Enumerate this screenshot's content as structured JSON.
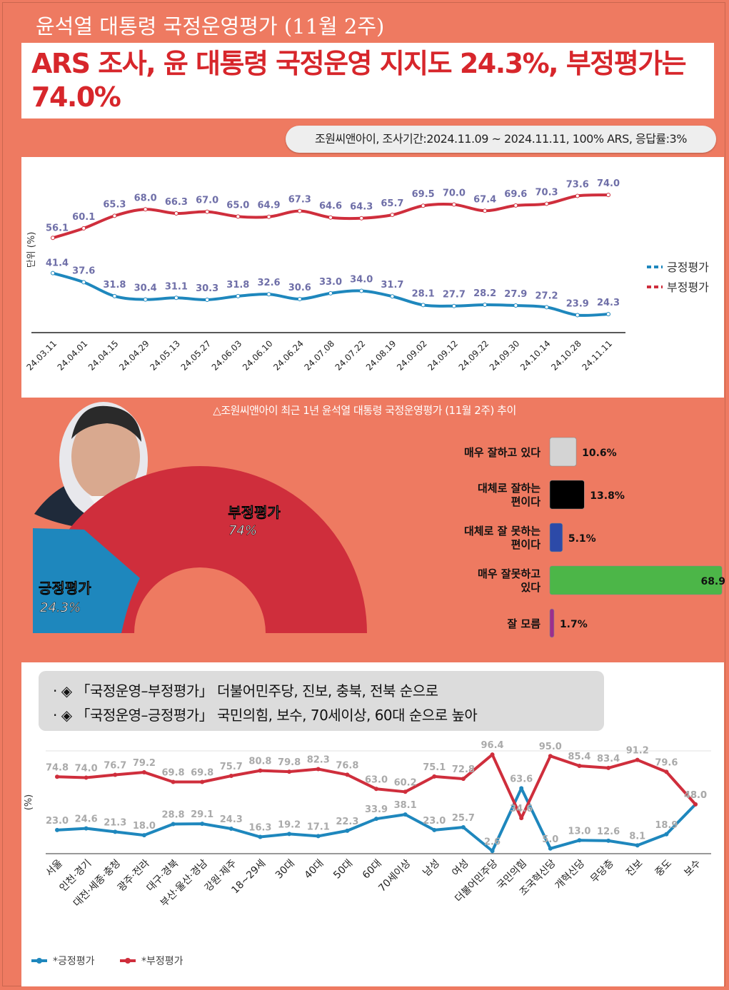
{
  "header": {
    "top_title": "윤석열 대통령 국정운영평가 (11월 2주)",
    "headline": "ARS 조사, 윤 대통령 국정운영 지지도 24.3%, 부정평가는 74.0%",
    "source": "조원씨앤아이, 조사기간:2024.11.09 ~ 2024.11.11, 100% ARS, 응답률:3%"
  },
  "trend_caption": "△조원씨앤아이 최근 1년 윤석열 대통령 국정운영평가 (11월 2주) 추이",
  "bubble": {
    "line1": "· ◈ 「국정운영–부정평가」 더불어민주당, 진보, 충북, 전북 순으로",
    "line2": "· ◈ 「국정운영–긍정평가」 국민의힘, 보수, 70세이상, 60대 순으로 높아"
  },
  "colors": {
    "positive": "#1e87bd",
    "negative": "#cf2e3c",
    "background": "#ee7a61"
  },
  "chart_data": [
    {
      "type": "line",
      "ylabel": "단위 (%)",
      "categories": [
        "24.03.11",
        "24.04.01",
        "24.04.15",
        "24.04.29",
        "24.05.13",
        "24.05.27",
        "24.06.03",
        "24.06.10",
        "24.06.24",
        "24.07.08",
        "24.07.22",
        "24.08.19",
        "24.09.02",
        "24.09.12",
        "24.09.22",
        "24.09.30",
        "24.10.14",
        "24.10.28",
        "24.11.11"
      ],
      "series": [
        {
          "name": "긍정평가",
          "color": "#1e87bd",
          "values": [
            41.4,
            37.6,
            31.8,
            30.4,
            31.1,
            30.3,
            31.8,
            32.6,
            30.6,
            33.0,
            34.0,
            31.7,
            28.1,
            27.7,
            28.2,
            27.9,
            27.2,
            23.9,
            24.3
          ],
          "labels": [
            "41.4",
            "37.6",
            "31.8",
            "30.4",
            "31.1",
            "30.3",
            "31.8",
            "32.6",
            "30.6",
            "33.0",
            "34.0",
            "31.7",
            "28.1",
            "27.7",
            "28.2",
            "27.9",
            "27.2",
            "23.9",
            "24.3"
          ]
        },
        {
          "name": "부정평가",
          "color": "#cf2e3c",
          "values": [
            56.1,
            60.1,
            65.3,
            68.0,
            66.3,
            67.0,
            65.0,
            64.9,
            67.3,
            64.6,
            64.3,
            65.7,
            69.5,
            70.0,
            67.4,
            69.6,
            70.3,
            73.6,
            74.0
          ],
          "labels": [
            "56.1",
            "60.1",
            "65.3",
            "68.0",
            "66.3",
            "67.0",
            "65.0",
            "64.9",
            "67.3",
            "64.6",
            "64.3",
            "65.7",
            "69.5",
            "70.0",
            "67.4",
            "69.6",
            "70.3",
            "73.6",
            "74.0"
          ]
        }
      ],
      "legend": [
        "긍정평가",
        "부정평가"
      ],
      "legend_position": "right"
    },
    {
      "type": "pie",
      "shape": "half-donut",
      "slices": [
        {
          "label": "부정평가",
          "value_label": "74%",
          "value": 74.0,
          "color": "#cf2e3c"
        },
        {
          "label": "긍정평가",
          "value_label": "24.3%",
          "value": 24.3,
          "color": "#1e87bd"
        }
      ]
    },
    {
      "type": "bar",
      "orientation": "horizontal",
      "categories": [
        "매우 잘하고 있다",
        "대체로 잘하는\n편이다",
        "대체로 잘 못하는\n편이다",
        "매우 잘못하고\n있다",
        "잘 모름"
      ],
      "values": [
        10.6,
        13.8,
        5.1,
        68.9,
        1.7
      ],
      "labels": [
        "10.6%",
        "13.8%",
        "5.1%",
        "68.9",
        "1.7%"
      ],
      "colors": [
        "#d4d4d4",
        "#000000",
        "#2c4aa8",
        "#4cb648",
        "#9c2e8e"
      ]
    },
    {
      "type": "line",
      "ylabel": "(%)",
      "categories": [
        "서울",
        "인천·경기",
        "대전·세종·충청",
        "광주·전라",
        "대구·경북",
        "부산·울산·경남",
        "강원·제주",
        "18~29세",
        "30대",
        "40대",
        "50대",
        "60대",
        "70세이상",
        "남성",
        "여성",
        "더불어민주당",
        "국민의힘",
        "조국혁신당",
        "개혁신당",
        "무당층",
        "진보",
        "중도",
        "보수"
      ],
      "series": [
        {
          "name": "*긍정평가",
          "color": "#1e87bd",
          "values": [
            23.0,
            24.6,
            21.3,
            18.0,
            28.8,
            29.1,
            24.3,
            16.3,
            19.2,
            17.1,
            22.3,
            33.9,
            38.1,
            23.0,
            25.7,
            2.6,
            63.6,
            5.0,
            13.0,
            12.6,
            8.1,
            18.9,
            48.0
          ],
          "labels": [
            "23.0",
            "24.6",
            "21.3",
            "18.0",
            "28.8",
            "29.1",
            "24.3",
            "16.3",
            "19.2",
            "17.1",
            "22.3",
            "33.9",
            "38.1",
            "23.0",
            "25.7",
            "2.6",
            "63.6",
            "5.0",
            "13.0",
            "12.6",
            "8.1",
            "18.9",
            "48.0"
          ]
        },
        {
          "name": "*부정평가",
          "color": "#cf2e3c",
          "values": [
            74.8,
            74.0,
            76.7,
            79.2,
            69.8,
            69.8,
            75.7,
            80.8,
            79.8,
            82.3,
            76.8,
            63.0,
            60.2,
            75.1,
            72.8,
            96.4,
            34.6,
            95.0,
            85.4,
            83.4,
            91.2,
            79.6,
            48.0
          ],
          "labels": [
            "74.8",
            "74.0",
            "76.7",
            "79.2",
            "69.8",
            "69.8",
            "75.7",
            "80.8",
            "79.8",
            "82.3",
            "76.8",
            "63.0",
            "60.2",
            "75.1",
            "72.8",
            "96.4",
            "34.6",
            "95.0",
            "85.4",
            "83.4",
            "91.2",
            "79.6",
            "48.0"
          ]
        }
      ],
      "legend": [
        "*긍정평가",
        "*부정평가"
      ],
      "legend_position": "bottom-left"
    }
  ]
}
